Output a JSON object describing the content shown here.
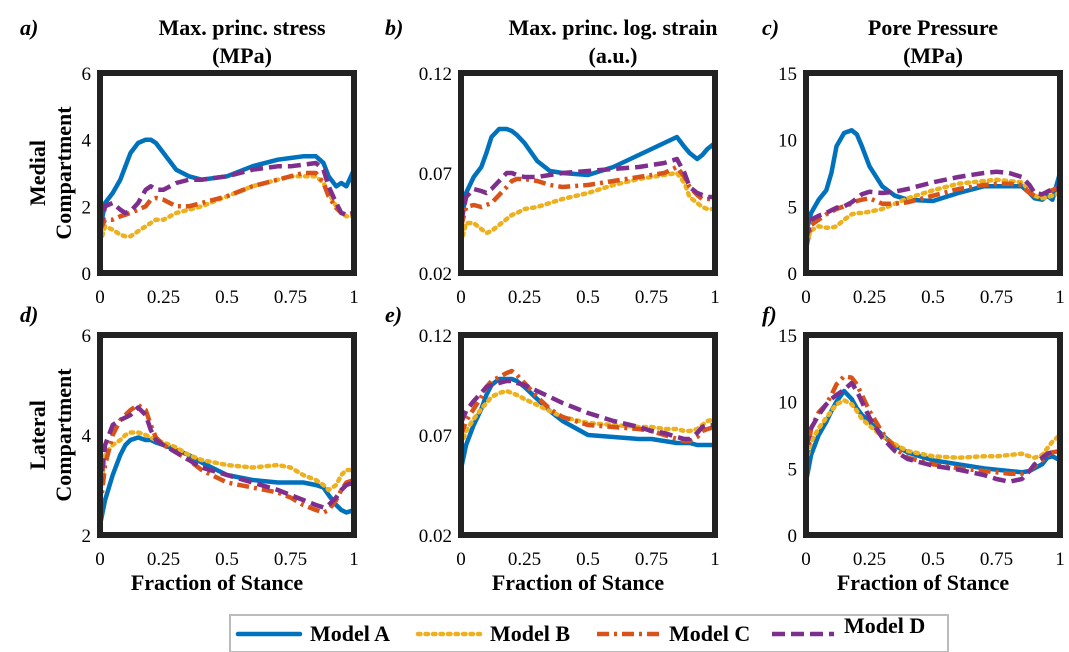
{
  "figure": {
    "row_labels": [
      "Medial\nCompartment",
      "Lateral\nCompartment"
    ],
    "xlabel": "Fraction of Stance",
    "colors": {
      "Model A": "#0072BD",
      "Model B": "#EDB120",
      "Model C": "#D95319",
      "Model D": "#7E2F8E"
    }
  },
  "legend": {
    "items": [
      {
        "name": "Model A",
        "style": "solid"
      },
      {
        "name": "Model B",
        "style": "dotted"
      },
      {
        "name": "Model C",
        "style": "dashdot"
      },
      {
        "name": "Model D",
        "style": "dashed"
      }
    ]
  },
  "chart_data": [
    {
      "type": "line",
      "panel": "a)",
      "title": "Max. princ. stress\n(MPa)",
      "xlim": [
        0,
        1
      ],
      "ylim": [
        0,
        6
      ],
      "xticks": [
        "0",
        "0.25",
        "0.5",
        "0.75",
        "1"
      ],
      "yticks": [
        "0",
        "2",
        "4",
        "6"
      ],
      "x": [
        0,
        0.02,
        0.05,
        0.08,
        0.1,
        0.12,
        0.15,
        0.18,
        0.2,
        0.22,
        0.25,
        0.3,
        0.35,
        0.4,
        0.5,
        0.6,
        0.7,
        0.75,
        0.8,
        0.85,
        0.88,
        0.9,
        0.93,
        0.95,
        0.97,
        1
      ],
      "series": [
        {
          "name": "Model A",
          "values": [
            1.3,
            2.1,
            2.4,
            2.8,
            3.2,
            3.6,
            3.9,
            4.0,
            4.0,
            3.9,
            3.6,
            3.1,
            2.9,
            2.8,
            2.9,
            3.2,
            3.4,
            3.45,
            3.5,
            3.5,
            3.3,
            2.9,
            2.6,
            2.7,
            2.6,
            3.1
          ]
        },
        {
          "name": "Model B",
          "values": [
            0.9,
            1.4,
            1.3,
            1.15,
            1.1,
            1.1,
            1.25,
            1.4,
            1.5,
            1.6,
            1.6,
            1.8,
            1.9,
            2.0,
            2.3,
            2.6,
            2.8,
            2.9,
            2.9,
            2.9,
            2.7,
            2.4,
            2.0,
            1.8,
            1.7,
            1.7
          ]
        },
        {
          "name": "Model C",
          "values": [
            1.3,
            1.6,
            1.6,
            1.7,
            1.75,
            1.8,
            1.9,
            2.0,
            2.2,
            2.25,
            2.2,
            2.0,
            2.0,
            2.1,
            2.3,
            2.6,
            2.8,
            2.9,
            3.0,
            3.0,
            2.7,
            2.3,
            1.95,
            1.8,
            1.75,
            1.8
          ]
        },
        {
          "name": "Model D",
          "values": [
            1.3,
            2.0,
            2.1,
            1.9,
            1.8,
            1.85,
            2.1,
            2.5,
            2.6,
            2.5,
            2.5,
            2.7,
            2.8,
            2.8,
            2.9,
            3.1,
            3.2,
            3.2,
            3.25,
            3.3,
            3.1,
            2.6,
            2.1,
            1.8,
            1.75,
            1.8
          ]
        }
      ]
    },
    {
      "type": "line",
      "panel": "b)",
      "title": "Max. princ. log. strain\n(a.u.)",
      "xlim": [
        0,
        1
      ],
      "ylim": [
        0.02,
        0.12
      ],
      "xticks": [
        "0",
        "0.25",
        "0.5",
        "0.75",
        "1"
      ],
      "yticks": [
        "0.02",
        "0.07",
        "0.12"
      ],
      "x": [
        0,
        0.02,
        0.05,
        0.08,
        0.1,
        0.12,
        0.15,
        0.18,
        0.2,
        0.22,
        0.25,
        0.3,
        0.35,
        0.4,
        0.5,
        0.6,
        0.7,
        0.75,
        0.8,
        0.85,
        0.88,
        0.9,
        0.93,
        0.95,
        0.97,
        1
      ],
      "series": [
        {
          "name": "Model A",
          "values": [
            0.045,
            0.06,
            0.068,
            0.073,
            0.08,
            0.088,
            0.092,
            0.092,
            0.091,
            0.089,
            0.085,
            0.076,
            0.071,
            0.07,
            0.069,
            0.073,
            0.079,
            0.082,
            0.085,
            0.088,
            0.083,
            0.08,
            0.077,
            0.079,
            0.082,
            0.085
          ]
        },
        {
          "name": "Model B",
          "values": [
            0.035,
            0.045,
            0.045,
            0.042,
            0.04,
            0.041,
            0.044,
            0.047,
            0.049,
            0.05,
            0.052,
            0.053,
            0.055,
            0.057,
            0.06,
            0.064,
            0.067,
            0.068,
            0.069,
            0.07,
            0.065,
            0.058,
            0.055,
            0.053,
            0.052,
            0.052
          ]
        },
        {
          "name": "Model C",
          "values": [
            0.043,
            0.053,
            0.054,
            0.053,
            0.054,
            0.055,
            0.059,
            0.063,
            0.066,
            0.067,
            0.067,
            0.066,
            0.064,
            0.063,
            0.064,
            0.066,
            0.068,
            0.069,
            0.07,
            0.073,
            0.068,
            0.063,
            0.059,
            0.057,
            0.057,
            0.057
          ]
        },
        {
          "name": "Model D",
          "values": [
            0.045,
            0.058,
            0.062,
            0.061,
            0.06,
            0.062,
            0.066,
            0.07,
            0.07,
            0.069,
            0.068,
            0.068,
            0.069,
            0.07,
            0.071,
            0.072,
            0.073,
            0.074,
            0.075,
            0.077,
            0.07,
            0.063,
            0.06,
            0.059,
            0.058,
            0.058
          ]
        }
      ]
    },
    {
      "type": "line",
      "panel": "c)",
      "title": "Pore Pressure\n(MPa)",
      "xlim": [
        0,
        1
      ],
      "ylim": [
        0,
        15
      ],
      "xticks": [
        "0",
        "0.25",
        "0.5",
        "0.75",
        "1"
      ],
      "yticks": [
        "0",
        "5",
        "10",
        "15"
      ],
      "x": [
        0,
        0.02,
        0.05,
        0.08,
        0.1,
        0.12,
        0.15,
        0.18,
        0.2,
        0.22,
        0.25,
        0.3,
        0.35,
        0.4,
        0.5,
        0.6,
        0.7,
        0.75,
        0.8,
        0.85,
        0.88,
        0.9,
        0.93,
        0.95,
        0.97,
        1
      ],
      "series": [
        {
          "name": "Model A",
          "values": [
            3.0,
            4.5,
            5.5,
            6.2,
            7.5,
            9.5,
            10.5,
            10.7,
            10.4,
            9.5,
            8.0,
            6.5,
            5.8,
            5.5,
            5.4,
            6.0,
            6.5,
            6.5,
            6.5,
            6.5,
            6.0,
            5.6,
            5.5,
            5.8,
            5.5,
            7.5
          ]
        },
        {
          "name": "Model B",
          "values": [
            2.2,
            3.2,
            3.5,
            3.4,
            3.4,
            3.5,
            4.0,
            4.4,
            4.5,
            4.5,
            4.6,
            4.8,
            5.2,
            5.6,
            6.2,
            6.7,
            6.9,
            7.0,
            6.9,
            6.8,
            6.2,
            5.8,
            5.6,
            5.7,
            5.8,
            6.0
          ]
        },
        {
          "name": "Model C",
          "values": [
            1.8,
            3.6,
            4.0,
            4.4,
            4.6,
            4.8,
            5.0,
            5.2,
            5.4,
            5.5,
            5.6,
            5.2,
            5.2,
            5.3,
            5.8,
            6.3,
            6.6,
            6.7,
            6.7,
            6.6,
            6.0,
            5.8,
            5.9,
            6.1,
            6.2,
            6.5
          ]
        },
        {
          "name": "Model D",
          "values": [
            2.5,
            4.0,
            4.3,
            4.5,
            4.7,
            4.9,
            5.0,
            5.3,
            5.6,
            5.9,
            6.1,
            6.0,
            6.1,
            6.3,
            6.8,
            7.2,
            7.5,
            7.6,
            7.5,
            7.2,
            6.6,
            6.0,
            5.9,
            6.1,
            6.3,
            6.4
          ]
        }
      ]
    },
    {
      "type": "line",
      "panel": "d)",
      "title": "",
      "xlim": [
        0,
        1
      ],
      "ylim": [
        2,
        6
      ],
      "xticks": [
        "0",
        "0.25",
        "0.5",
        "0.75",
        "1"
      ],
      "yticks": [
        "2",
        "4",
        "6"
      ],
      "x": [
        0,
        0.02,
        0.05,
        0.08,
        0.1,
        0.12,
        0.15,
        0.18,
        0.2,
        0.22,
        0.25,
        0.3,
        0.35,
        0.4,
        0.5,
        0.6,
        0.7,
        0.75,
        0.8,
        0.85,
        0.88,
        0.9,
        0.93,
        0.95,
        0.97,
        1
      ],
      "series": [
        {
          "name": "Model A",
          "values": [
            2.2,
            2.7,
            3.2,
            3.6,
            3.8,
            3.9,
            3.95,
            3.9,
            3.9,
            3.85,
            3.8,
            3.7,
            3.6,
            3.45,
            3.2,
            3.1,
            3.05,
            3.05,
            3.05,
            3.0,
            2.95,
            2.8,
            2.6,
            2.5,
            2.45,
            2.5
          ]
        },
        {
          "name": "Model B",
          "values": [
            2.8,
            3.6,
            3.8,
            3.9,
            4.0,
            4.05,
            4.05,
            4.0,
            3.95,
            3.9,
            3.85,
            3.75,
            3.6,
            3.5,
            3.4,
            3.35,
            3.4,
            3.35,
            3.2,
            3.1,
            3.0,
            2.9,
            3.0,
            3.2,
            3.3,
            3.3
          ]
        },
        {
          "name": "Model C",
          "values": [
            2.5,
            3.4,
            4.0,
            4.3,
            4.4,
            4.5,
            4.6,
            4.5,
            4.2,
            3.95,
            3.8,
            3.65,
            3.5,
            3.3,
            3.05,
            2.95,
            2.85,
            2.75,
            2.6,
            2.5,
            2.45,
            2.5,
            2.7,
            2.9,
            3.05,
            3.1
          ]
        },
        {
          "name": "Model D",
          "values": [
            2.9,
            3.8,
            4.2,
            4.3,
            4.35,
            4.4,
            4.55,
            4.4,
            4.1,
            3.9,
            3.8,
            3.65,
            3.5,
            3.35,
            3.2,
            3.05,
            2.9,
            2.8,
            2.7,
            2.6,
            2.55,
            2.6,
            2.75,
            2.9,
            3.0,
            3.05
          ]
        }
      ]
    },
    {
      "type": "line",
      "panel": "e)",
      "title": "",
      "xlim": [
        0,
        1
      ],
      "ylim": [
        0.02,
        0.12
      ],
      "xticks": [
        "0",
        "0.25",
        "0.5",
        "0.75",
        "1"
      ],
      "yticks": [
        "0.02",
        "0.07",
        "0.12"
      ],
      "x": [
        0,
        0.02,
        0.05,
        0.08,
        0.1,
        0.12,
        0.15,
        0.18,
        0.2,
        0.22,
        0.25,
        0.3,
        0.35,
        0.4,
        0.5,
        0.6,
        0.7,
        0.75,
        0.8,
        0.85,
        0.88,
        0.9,
        0.93,
        0.95,
        0.97,
        1
      ],
      "series": [
        {
          "name": "Model A",
          "values": [
            0.053,
            0.065,
            0.075,
            0.083,
            0.09,
            0.095,
            0.098,
            0.098,
            0.098,
            0.097,
            0.094,
            0.088,
            0.082,
            0.077,
            0.07,
            0.069,
            0.068,
            0.068,
            0.067,
            0.066,
            0.066,
            0.066,
            0.065,
            0.065,
            0.065,
            0.065
          ]
        },
        {
          "name": "Model B",
          "values": [
            0.065,
            0.072,
            0.078,
            0.083,
            0.086,
            0.089,
            0.091,
            0.092,
            0.091,
            0.09,
            0.088,
            0.085,
            0.082,
            0.079,
            0.076,
            0.075,
            0.074,
            0.074,
            0.073,
            0.073,
            0.072,
            0.072,
            0.073,
            0.075,
            0.077,
            0.078
          ]
        },
        {
          "name": "Model C",
          "values": [
            0.07,
            0.077,
            0.083,
            0.089,
            0.094,
            0.097,
            0.099,
            0.101,
            0.102,
            0.1,
            0.096,
            0.089,
            0.083,
            0.079,
            0.075,
            0.074,
            0.073,
            0.072,
            0.07,
            0.068,
            0.067,
            0.067,
            0.069,
            0.072,
            0.073,
            0.074
          ]
        },
        {
          "name": "Model D",
          "values": [
            0.076,
            0.082,
            0.087,
            0.091,
            0.094,
            0.095,
            0.096,
            0.097,
            0.097,
            0.096,
            0.095,
            0.092,
            0.089,
            0.086,
            0.081,
            0.077,
            0.074,
            0.072,
            0.071,
            0.069,
            0.068,
            0.068,
            0.071,
            0.074,
            0.075,
            0.075
          ]
        }
      ]
    },
    {
      "type": "line",
      "panel": "f)",
      "title": "",
      "xlim": [
        0,
        1
      ],
      "ylim": [
        0,
        15
      ],
      "xticks": [
        "0",
        "0.25",
        "0.5",
        "0.75",
        "1"
      ],
      "yticks": [
        "0",
        "5",
        "10",
        "15"
      ],
      "x": [
        0,
        0.02,
        0.05,
        0.08,
        0.1,
        0.12,
        0.15,
        0.18,
        0.2,
        0.22,
        0.25,
        0.3,
        0.35,
        0.4,
        0.5,
        0.6,
        0.7,
        0.75,
        0.8,
        0.85,
        0.88,
        0.9,
        0.93,
        0.95,
        0.97,
        1
      ],
      "series": [
        {
          "name": "Model A",
          "values": [
            4.0,
            6.0,
            7.5,
            8.5,
            9.3,
            10.0,
            10.8,
            10.2,
            9.5,
            9.0,
            8.5,
            7.5,
            6.7,
            6.2,
            5.6,
            5.3,
            5.0,
            4.9,
            4.8,
            4.7,
            4.8,
            5.0,
            5.3,
            5.8,
            5.9,
            5.6
          ]
        },
        {
          "name": "Model B",
          "values": [
            5.5,
            7.0,
            8.0,
            8.8,
            9.3,
            9.8,
            10.1,
            9.8,
            9.3,
            8.7,
            8.2,
            7.4,
            6.8,
            6.3,
            5.9,
            5.8,
            5.9,
            5.9,
            6.0,
            6.1,
            5.9,
            5.8,
            6.0,
            6.5,
            7.0,
            7.5
          ]
        },
        {
          "name": "Model C",
          "values": [
            5.5,
            8.0,
            9.2,
            9.8,
            10.5,
            11.3,
            11.9,
            11.8,
            11.3,
            10.5,
            9.3,
            7.7,
            6.5,
            5.8,
            5.3,
            5.0,
            4.8,
            4.7,
            4.6,
            4.6,
            4.8,
            5.2,
            5.6,
            6.0,
            6.2,
            6.3
          ]
        },
        {
          "name": "Model D",
          "values": [
            6.5,
            8.0,
            9.0,
            9.8,
            10.2,
            10.5,
            10.9,
            11.4,
            10.8,
            10.0,
            8.8,
            7.3,
            6.3,
            5.7,
            5.2,
            4.9,
            4.5,
            4.2,
            4.0,
            4.2,
            4.8,
            5.3,
            5.8,
            6.1,
            6.2,
            6.2
          ]
        }
      ]
    }
  ]
}
